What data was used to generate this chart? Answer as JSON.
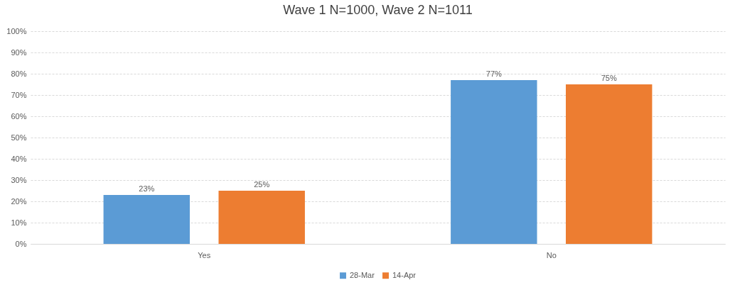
{
  "chart_data": {
    "type": "bar",
    "title": "Wave 1 N=1000, Wave 2 N=1011",
    "categories": [
      "Yes",
      "No"
    ],
    "series": [
      {
        "name": "28-Mar",
        "color": "#5b9bd5",
        "values": [
          23,
          77
        ],
        "value_labels": [
          "23%",
          "77%"
        ]
      },
      {
        "name": "14-Apr",
        "color": "#ed7d31",
        "values": [
          25,
          75
        ],
        "value_labels": [
          "25%",
          "75%"
        ]
      }
    ],
    "ylim": [
      0,
      100
    ],
    "yticks": [
      {
        "value": 0,
        "label": "0%"
      },
      {
        "value": 10,
        "label": "10%"
      },
      {
        "value": 20,
        "label": "20%"
      },
      {
        "value": 30,
        "label": "30%"
      },
      {
        "value": 40,
        "label": "40%"
      },
      {
        "value": 50,
        "label": "50%"
      },
      {
        "value": 60,
        "label": "60%"
      },
      {
        "value": 70,
        "label": "70%"
      },
      {
        "value": 80,
        "label": "80%"
      },
      {
        "value": 90,
        "label": "90%"
      },
      {
        "value": 100,
        "label": "100%"
      }
    ],
    "grid": "y",
    "legend": "bottom"
  }
}
